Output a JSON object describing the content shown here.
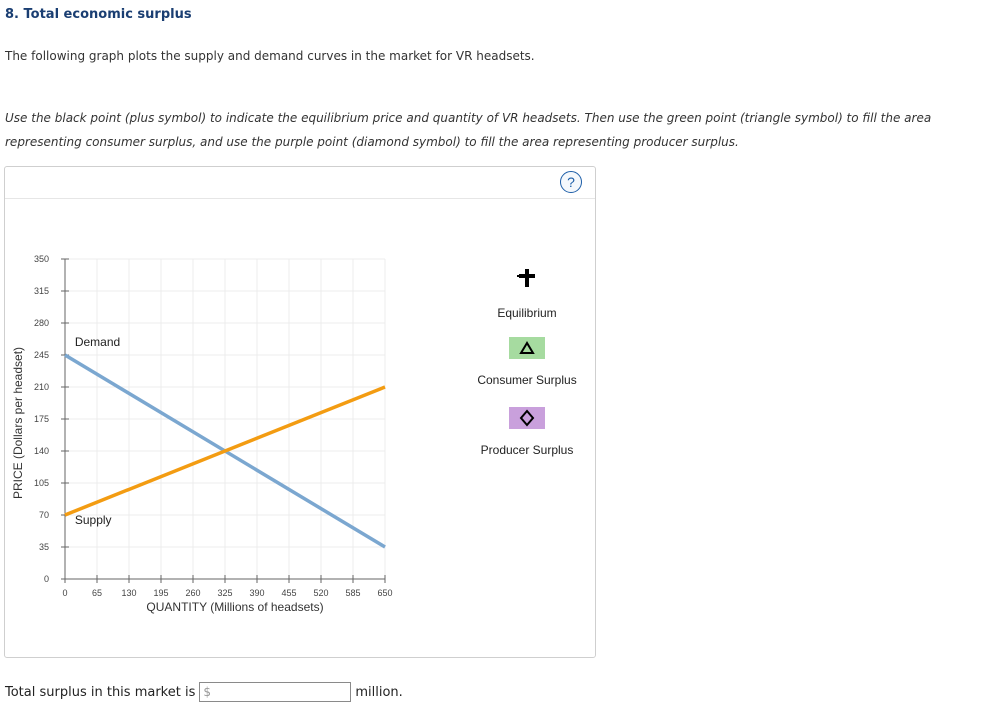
{
  "question": {
    "title": "8. Total economic surplus",
    "intro": "The following graph plots the supply and demand curves in the market for VR headsets.",
    "instructions": "Use the black point (plus symbol) to indicate the equilibrium price and quantity of VR headsets. Then use the green point (triangle symbol) to fill the area representing consumer surplus, and use the purple point (diamond symbol) to fill the area representing producer surplus."
  },
  "help_label": "?",
  "tools": {
    "equilibrium": {
      "label": "Equilibrium",
      "icon": "plus-icon",
      "color": "#000000"
    },
    "consumer_surplus": {
      "label": "Consumer Surplus",
      "icon": "triangle-icon",
      "color": "#a6dba0"
    },
    "producer_surplus": {
      "label": "Producer Surplus",
      "icon": "diamond-icon",
      "color": "#c9a0dc"
    }
  },
  "chart_data": {
    "type": "line",
    "title": "",
    "xlabel": "QUANTITY (Millions of headsets)",
    "ylabel": "PRICE (Dollars per headset)",
    "xlim": [
      0,
      650
    ],
    "ylim": [
      0,
      350
    ],
    "xticks": [
      0,
      65,
      130,
      195,
      260,
      325,
      390,
      455,
      520,
      585,
      650
    ],
    "yticks": [
      0,
      35,
      70,
      105,
      140,
      175,
      210,
      245,
      280,
      315,
      350
    ],
    "grid": true,
    "series": [
      {
        "name": "Demand",
        "color": "#7ba7d0",
        "x": [
          0,
          650
        ],
        "y": [
          245,
          35
        ]
      },
      {
        "name": "Supply",
        "color": "#f39c12",
        "x": [
          0,
          650
        ],
        "y": [
          70,
          210
        ]
      }
    ],
    "annotations": [
      {
        "text": "Demand",
        "x": 20,
        "y": 255
      },
      {
        "text": "Supply",
        "x": 20,
        "y": 60
      }
    ]
  },
  "answer": {
    "prefix": "Total surplus in this market is",
    "currency": "$",
    "value": "",
    "suffix": "million."
  }
}
